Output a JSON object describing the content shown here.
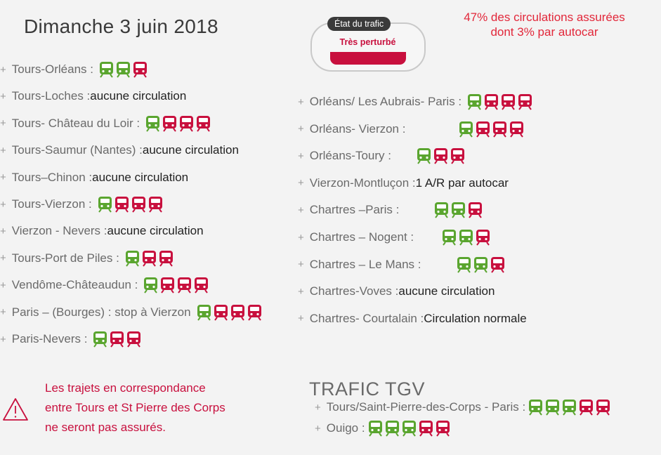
{
  "header": {
    "date": "Dimanche 3  juin 2018"
  },
  "traffic_widget": {
    "label": "État du trafic",
    "status": "Très perturbé"
  },
  "circulation_note": {
    "line1": "47% des circulations assurées",
    "line2": "dont 3% par autocar"
  },
  "colors": {
    "green": "#5aa52f",
    "red": "#c8103e",
    "warning_red": "#c8103e",
    "note_red": "#e2273a"
  },
  "left_routes": [
    {
      "name": "Tours-Orléans : ",
      "detail": "",
      "trains": [
        "green",
        "green",
        "red"
      ]
    },
    {
      "name": "Tours-Loches : ",
      "detail": "aucune circulation",
      "trains": []
    },
    {
      "name": "Tours- Château du Loir : ",
      "detail": "",
      "trains": [
        "green",
        "red",
        "red",
        "red"
      ]
    },
    {
      "name": "Tours-Saumur (Nantes) : ",
      "detail": "aucune circulation",
      "trains": []
    },
    {
      "name": "Tours–Chinon : ",
      "detail": "aucune circulation",
      "trains": []
    },
    {
      "name": "Tours-Vierzon : ",
      "detail": "",
      "trains": [
        "green",
        "red",
        "red",
        "red"
      ]
    },
    {
      "name": "Vierzon - Nevers : ",
      "detail": "aucune circulation",
      "trains": []
    },
    {
      "name": "Tours-Port de Piles : ",
      "detail": "",
      "trains": [
        "green",
        "red",
        "red"
      ]
    },
    {
      "name": "Vendôme-Châteaudun : ",
      "detail": "",
      "trains": [
        "green",
        "red",
        "red",
        "red"
      ]
    },
    {
      "name": "Paris – (Bourges) : stop à Vierzon",
      "detail": "",
      "trains": [
        "green",
        "red",
        "red",
        "red"
      ]
    },
    {
      "name": "Paris-Nevers : ",
      "detail": "",
      "trains": [
        "green",
        "red",
        "red"
      ]
    }
  ],
  "right_routes": [
    {
      "name": "Orléans/ Les Aubrais- Paris : ",
      "detail": "",
      "trains": [
        "green",
        "red",
        "red",
        "red"
      ]
    },
    {
      "name": "Orléans- Vierzon : ",
      "detail": "",
      "trains": [
        "green",
        "red",
        "red",
        "red"
      ]
    },
    {
      "name": "Orléans-Toury : ",
      "detail": "",
      "trains": [
        "green",
        "red",
        "red"
      ]
    },
    {
      "name": "Vierzon-Montluçon : ",
      "detail": "1 A/R par autocar",
      "trains": []
    },
    {
      "name": "Chartres –Paris : ",
      "detail": "",
      "trains": [
        "green",
        "green",
        "red"
      ]
    },
    {
      "name": "Chartres – Nogent : ",
      "detail": "",
      "trains": [
        "green",
        "green",
        "red"
      ]
    },
    {
      "name": "Chartres – Le Mans : ",
      "detail": "",
      "trains": [
        "green",
        "green",
        "red"
      ]
    },
    {
      "name": "Chartres-Voves : ",
      "detail": "aucune circulation",
      "trains": []
    },
    {
      "name": "Chartres- Courtalain : ",
      "detail": "Circulation normale",
      "trains": []
    }
  ],
  "warning": {
    "line1": "Les trajets en correspondance",
    "line2": "entre Tours et St Pierre des Corps",
    "line3": "ne seront pas assurés."
  },
  "tgv": {
    "title": "TRAFIC TGV",
    "routes": [
      {
        "name": "Tours/Saint-Pierre-des-Corps - Paris : ",
        "trains": [
          "green",
          "green",
          "green",
          "red",
          "red"
        ]
      },
      {
        "name": "Ouigo : ",
        "trains": [
          "green",
          "green",
          "green",
          "red",
          "red"
        ]
      }
    ]
  }
}
